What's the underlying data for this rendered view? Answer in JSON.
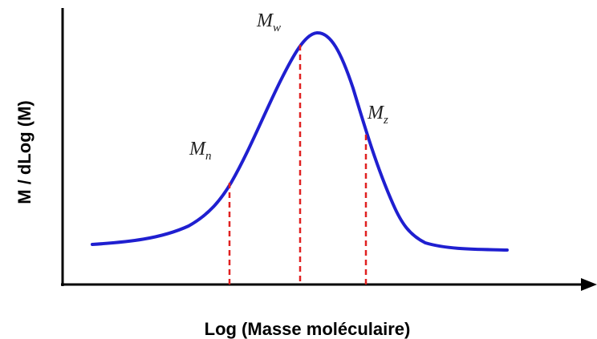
{
  "y_axis_label": "M / dLog (M)",
  "x_axis_label": "Log (Masse moléculaire)",
  "markers": [
    {
      "label": "M",
      "subscript": "n"
    },
    {
      "label": "M",
      "subscript": "w"
    },
    {
      "label": "M",
      "subscript": "z"
    }
  ]
}
